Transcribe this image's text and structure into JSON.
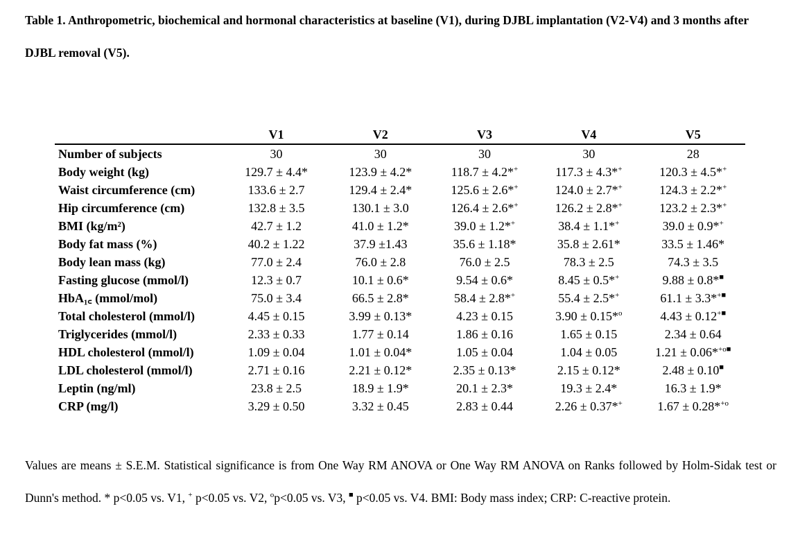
{
  "caption": {
    "text": "Table 1. Anthropometric, biochemical and hormonal characteristics at baseline (V1), during DJBL implantation (V2-V4) and 3 months after DJBL removal (V5)."
  },
  "table": {
    "corner": "",
    "columns": [
      "V1",
      "V2",
      "V3",
      "V4",
      "V5"
    ],
    "rows": [
      {
        "label": "Number of subjects",
        "cells": [
          {
            "v": "30",
            "m": ""
          },
          {
            "v": "30",
            "m": ""
          },
          {
            "v": "30",
            "m": ""
          },
          {
            "v": "30",
            "m": ""
          },
          {
            "v": "28",
            "m": ""
          }
        ]
      },
      {
        "label": "Body weight (kg)",
        "cells": [
          {
            "v": "129.7 ± 4.4*",
            "m": ""
          },
          {
            "v": "123.9 ± 4.2*",
            "m": ""
          },
          {
            "v": "118.7 ± 4.2*",
            "m": "+"
          },
          {
            "v": "117.3 ± 4.3*",
            "m": "+"
          },
          {
            "v": "120.3 ± 4.5*",
            "m": "+"
          }
        ]
      },
      {
        "label": "Waist circumference (cm)",
        "cells": [
          {
            "v": "133.6 ± 2.7",
            "m": ""
          },
          {
            "v": "129.4 ± 2.4*",
            "m": ""
          },
          {
            "v": "125.6 ± 2.6*",
            "m": "+"
          },
          {
            "v": "124.0 ± 2.7*",
            "m": "+"
          },
          {
            "v": "124.3 ± 2.2*",
            "m": "+"
          }
        ]
      },
      {
        "label": "Hip circumference (cm)",
        "cells": [
          {
            "v": "132.8 ± 3.5",
            "m": ""
          },
          {
            "v": "130.1 ± 3.0",
            "m": ""
          },
          {
            "v": "126.4 ± 2.6*",
            "m": "+"
          },
          {
            "v": "126.2 ± 2.8*",
            "m": "+"
          },
          {
            "v": "123.2 ± 2.3*",
            "m": "+"
          }
        ]
      },
      {
        "label": "BMI (kg/m²)",
        "cells": [
          {
            "v": "42.7 ± 1.2",
            "m": ""
          },
          {
            "v": "41.0 ± 1.2*",
            "m": ""
          },
          {
            "v": "39.0 ± 1.2*",
            "m": "+"
          },
          {
            "v": "38.4 ± 1.1*",
            "m": "+"
          },
          {
            "v": "39.0 ± 0.9*",
            "m": "+"
          }
        ]
      },
      {
        "label": "Body fat mass (%)",
        "cells": [
          {
            "v": "40.2 ± 1.22",
            "m": ""
          },
          {
            "v": "37.9 ±1.43",
            "m": ""
          },
          {
            "v": "35.6 ± 1.18*",
            "m": ""
          },
          {
            "v": "35.8 ± 2.61*",
            "m": ""
          },
          {
            "v": "33.5 ± 1.46*",
            "m": ""
          }
        ]
      },
      {
        "label": "Body lean mass (kg)",
        "cells": [
          {
            "v": "77.0 ± 2.4",
            "m": ""
          },
          {
            "v": "76.0 ± 2.8",
            "m": ""
          },
          {
            "v": "76.0 ± 2.5",
            "m": ""
          },
          {
            "v": "78.3 ± 2.5",
            "m": ""
          },
          {
            "v": "74.3 ± 3.5",
            "m": ""
          }
        ]
      },
      {
        "label": "Fasting glucose (mmol/l)",
        "cells": [
          {
            "v": "12.3 ± 0.7",
            "m": ""
          },
          {
            "v": "10.1 ± 0.6*",
            "m": ""
          },
          {
            "v": "9.54 ± 0.6*",
            "m": ""
          },
          {
            "v": "8.45 ± 0.5*",
            "m": "+"
          },
          {
            "v": "9.88 ± 0.8*",
            "m": "■"
          }
        ]
      },
      {
        "label": "HbA₁꜀ (mmol/mol)",
        "cells": [
          {
            "v": "75.0 ± 3.4",
            "m": ""
          },
          {
            "v": "66.5 ± 2.8*",
            "m": ""
          },
          {
            "v": "58.4 ± 2.8*",
            "m": "+"
          },
          {
            "v": "55.4 ± 2.5*",
            "m": "+"
          },
          {
            "v": "61.1 ± 3.3*",
            "m": "+■"
          }
        ]
      },
      {
        "label": "Total cholesterol (mmol/l)",
        "cells": [
          {
            "v": "4.45 ± 0.15",
            "m": ""
          },
          {
            "v": "3.99 ± 0.13*",
            "m": ""
          },
          {
            "v": "4.23 ± 0.15",
            "m": ""
          },
          {
            "v": "3.90 ± 0.15*",
            "m": "o"
          },
          {
            "v": "4.43 ± 0.12",
            "m": "+■"
          }
        ]
      },
      {
        "label": "Triglycerides (mmol/l)",
        "cells": [
          {
            "v": "2.33 ± 0.33",
            "m": ""
          },
          {
            "v": "1.77 ± 0.14",
            "m": ""
          },
          {
            "v": "1.86 ± 0.16",
            "m": ""
          },
          {
            "v": "1.65 ± 0.15",
            "m": ""
          },
          {
            "v": "2.34 ± 0.64",
            "m": ""
          }
        ]
      },
      {
        "label": "HDL cholesterol (mmol/l)",
        "cells": [
          {
            "v": "1.09 ± 0.04",
            "m": ""
          },
          {
            "v": "1.01 ± 0.04*",
            "m": ""
          },
          {
            "v": "1.05 ± 0.04",
            "m": ""
          },
          {
            "v": "1.04 ± 0.05",
            "m": ""
          },
          {
            "v": "1.21 ± 0.06*",
            "m": "+o■"
          }
        ]
      },
      {
        "label": "LDL cholesterol (mmol/l)",
        "cells": [
          {
            "v": "2.71 ± 0.16",
            "m": ""
          },
          {
            "v": "2.21 ± 0.12*",
            "m": ""
          },
          {
            "v": "2.35 ± 0.13*",
            "m": ""
          },
          {
            "v": "2.15 ± 0.12*",
            "m": ""
          },
          {
            "v": "2.48 ± 0.10",
            "m": "■"
          }
        ]
      },
      {
        "label": "Leptin (ng/ml)",
        "cells": [
          {
            "v": "23.8 ± 2.5",
            "m": ""
          },
          {
            "v": "18.9 ± 1.9*",
            "m": ""
          },
          {
            "v": "20.1 ± 2.3*",
            "m": ""
          },
          {
            "v": "19.3 ± 2.4*",
            "m": ""
          },
          {
            "v": "16.3 ± 1.9*",
            "m": ""
          }
        ]
      },
      {
        "label": "CRP (mg/l)",
        "cells": [
          {
            "v": "3.29 ± 0.50",
            "m": ""
          },
          {
            "v": "3.32 ± 0.45",
            "m": ""
          },
          {
            "v": "2.83 ± 0.44",
            "m": ""
          },
          {
            "v": "2.26 ± 0.37*",
            "m": "+"
          },
          {
            "v": "1.67 ± 0.28*",
            "m": "+o"
          }
        ]
      }
    ]
  },
  "footnote": {
    "part1": "Values are means ± S.E.M. Statistical significance is from One Way RM ANOVA or One Way RM ANOVA on Ranks followed by Holm-Sidak test or Dunn's method. * p<0.05 vs. V1, ",
    "mark_plus": "+",
    "part2": " p<0.05 vs. V2, ",
    "mark_o": "o",
    "part3": "p<0.05 vs. V3, ",
    "mark_square": "■",
    "part4": " p<0.05 vs. V4. BMI: Body mass index; CRP: C-reactive protein."
  }
}
